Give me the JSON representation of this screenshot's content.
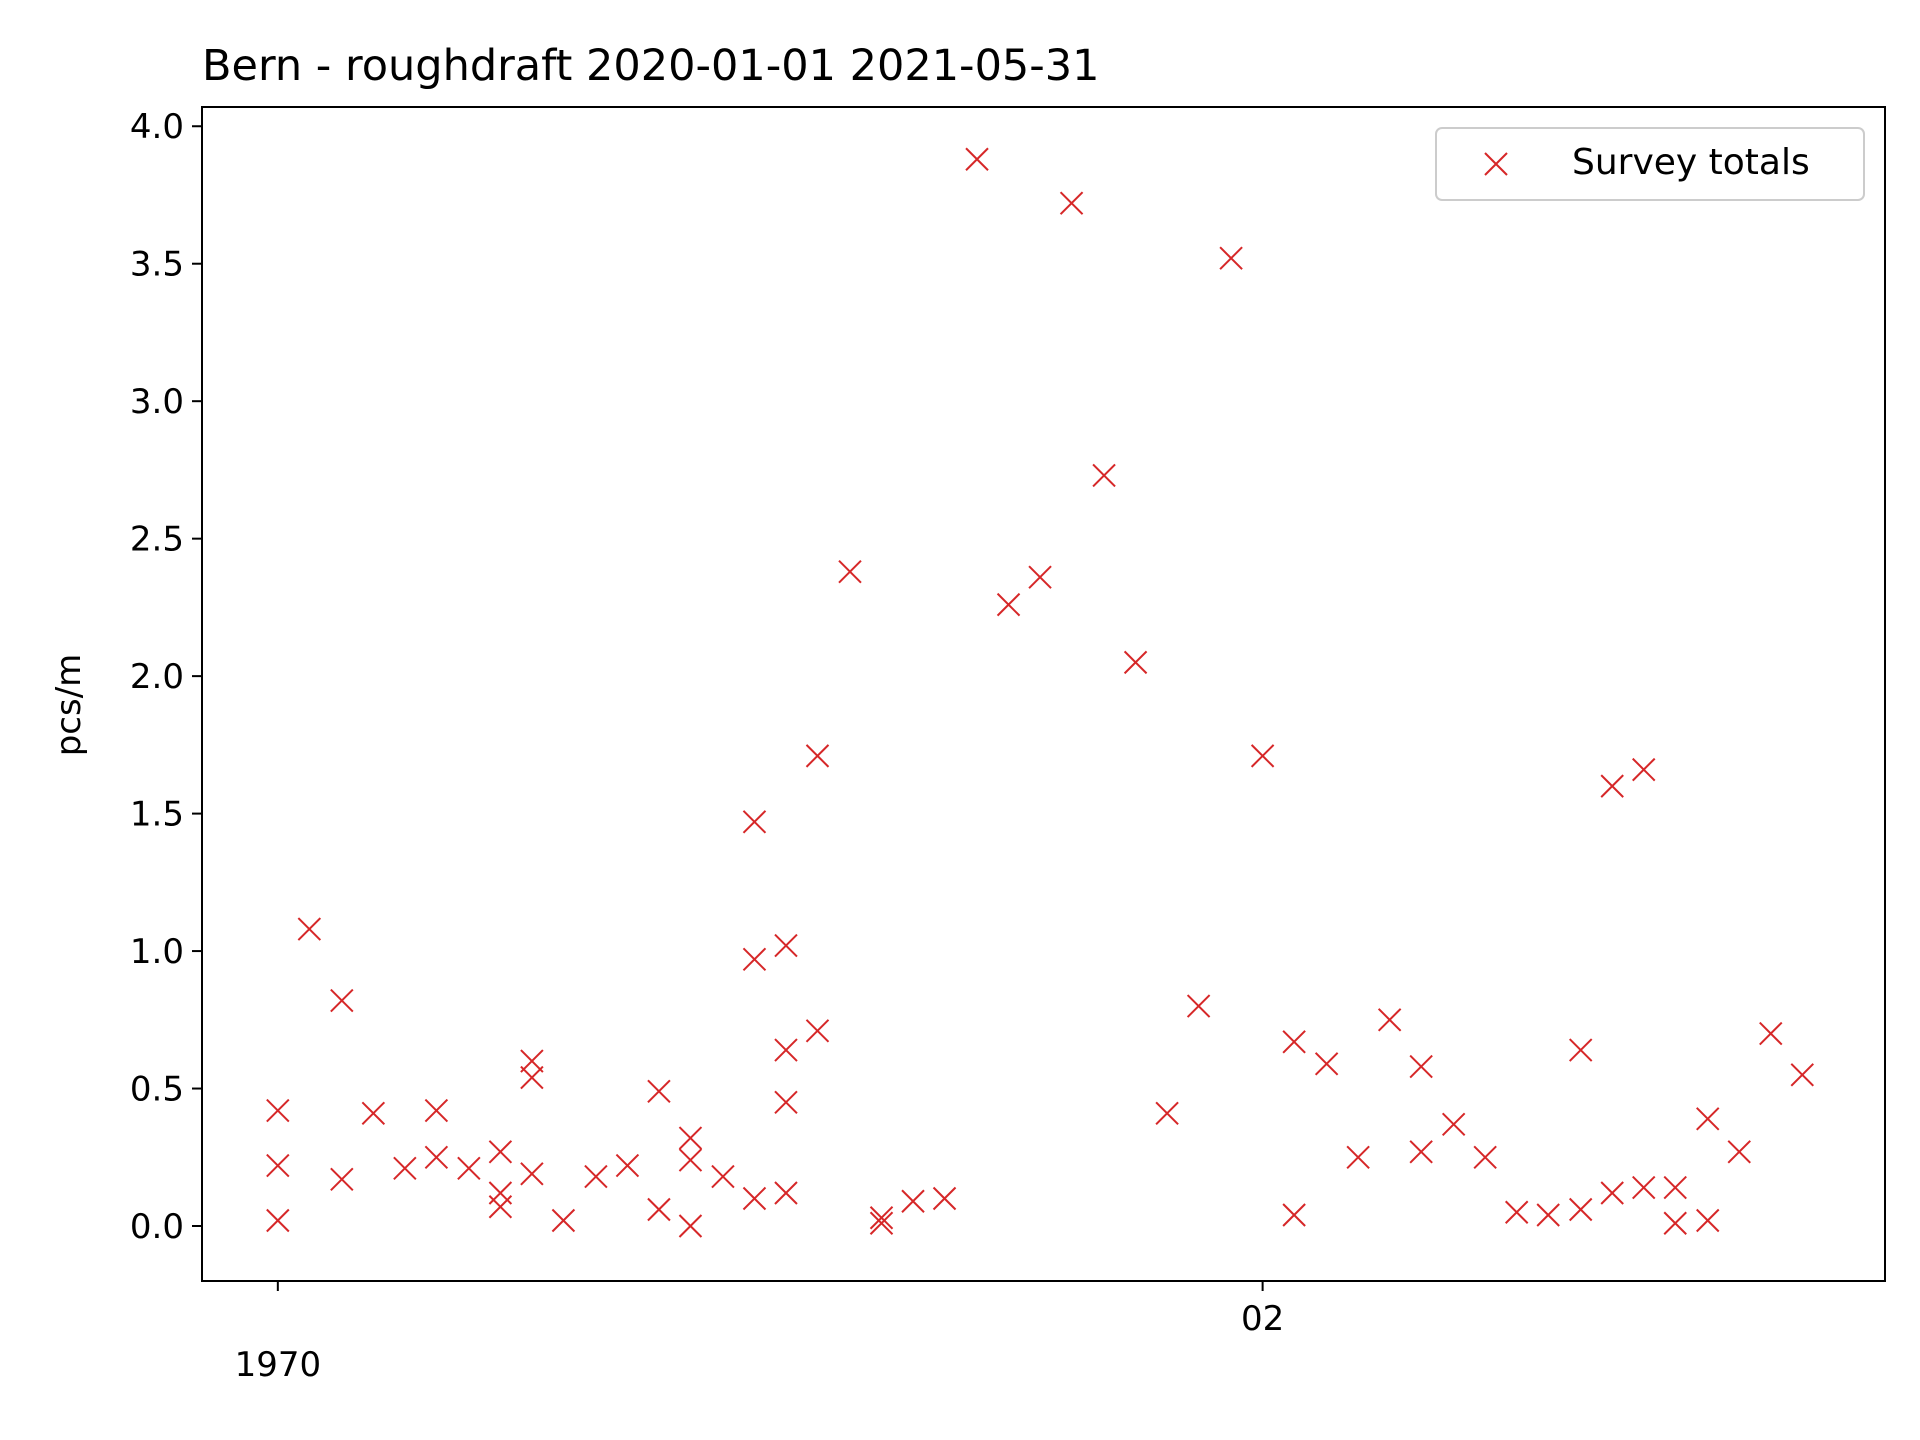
{
  "chart_data": {
    "type": "scatter",
    "title": "Bern - roughdraft 2020-01-01 2021-05-31",
    "xlabel": "",
    "ylabel": "pcs/m",
    "ylim": [
      -0.2,
      4.07
    ],
    "xlim": [
      -0.077,
      1.632
    ],
    "yticks": [
      0.0,
      0.5,
      1.0,
      1.5,
      2.0,
      2.5,
      3.0,
      3.5,
      4.0
    ],
    "ytick_labels": [
      "0.0",
      "0.5",
      "1.0",
      "1.5",
      "2.0",
      "2.5",
      "3.0",
      "3.5",
      "4.0"
    ],
    "xticks": [
      0.0,
      1.0
    ],
    "xtick_labels": [
      "1970",
      "02"
    ],
    "grid": false,
    "legend_position": "top-right",
    "marker_color": "#d62728",
    "series": [
      {
        "name": "Survey totals",
        "marker": "x",
        "points": [
          [
            0.0,
            0.42
          ],
          [
            0.0,
            0.22
          ],
          [
            0.0,
            0.02
          ],
          [
            0.032,
            1.08
          ],
          [
            0.065,
            0.82
          ],
          [
            0.065,
            0.17
          ],
          [
            0.097,
            0.41
          ],
          [
            0.129,
            0.21
          ],
          [
            0.161,
            0.42
          ],
          [
            0.161,
            0.25
          ],
          [
            0.194,
            0.21
          ],
          [
            0.226,
            0.27
          ],
          [
            0.226,
            0.12
          ],
          [
            0.226,
            0.07
          ],
          [
            0.258,
            0.6
          ],
          [
            0.258,
            0.54
          ],
          [
            0.258,
            0.19
          ],
          [
            0.29,
            0.02
          ],
          [
            0.323,
            0.18
          ],
          [
            0.355,
            0.22
          ],
          [
            0.387,
            0.49
          ],
          [
            0.387,
            0.06
          ],
          [
            0.419,
            0.32
          ],
          [
            0.419,
            0.24
          ],
          [
            0.419,
            0.0
          ],
          [
            0.452,
            0.18
          ],
          [
            0.484,
            1.47
          ],
          [
            0.484,
            0.97
          ],
          [
            0.484,
            0.1
          ],
          [
            0.516,
            1.02
          ],
          [
            0.516,
            0.64
          ],
          [
            0.516,
            0.45
          ],
          [
            0.516,
            0.12
          ],
          [
            0.548,
            1.71
          ],
          [
            0.548,
            0.71
          ],
          [
            0.581,
            2.38
          ],
          [
            0.613,
            0.03
          ],
          [
            0.613,
            0.01
          ],
          [
            0.645,
            0.09
          ],
          [
            0.677,
            0.1
          ],
          [
            0.71,
            3.88
          ],
          [
            0.742,
            2.26
          ],
          [
            0.774,
            2.36
          ],
          [
            0.806,
            3.72
          ],
          [
            0.839,
            2.73
          ],
          [
            0.871,
            2.05
          ],
          [
            0.903,
            0.41
          ],
          [
            0.935,
            0.8
          ],
          [
            0.968,
            3.52
          ],
          [
            1.0,
            1.71
          ],
          [
            1.032,
            0.67
          ],
          [
            1.032,
            0.04
          ],
          [
            1.065,
            0.59
          ],
          [
            1.097,
            0.25
          ],
          [
            1.129,
            0.75
          ],
          [
            1.161,
            0.58
          ],
          [
            1.161,
            0.27
          ],
          [
            1.194,
            0.37
          ],
          [
            1.226,
            0.25
          ],
          [
            1.258,
            0.05
          ],
          [
            1.29,
            0.04
          ],
          [
            1.323,
            0.64
          ],
          [
            1.323,
            0.06
          ],
          [
            1.355,
            1.6
          ],
          [
            1.355,
            0.12
          ],
          [
            1.387,
            1.66
          ],
          [
            1.387,
            0.14
          ],
          [
            1.419,
            0.14
          ],
          [
            1.419,
            0.01
          ],
          [
            1.452,
            0.39
          ],
          [
            1.452,
            0.02
          ],
          [
            1.484,
            0.27
          ],
          [
            1.516,
            0.7
          ],
          [
            1.548,
            0.55
          ]
        ]
      }
    ]
  }
}
